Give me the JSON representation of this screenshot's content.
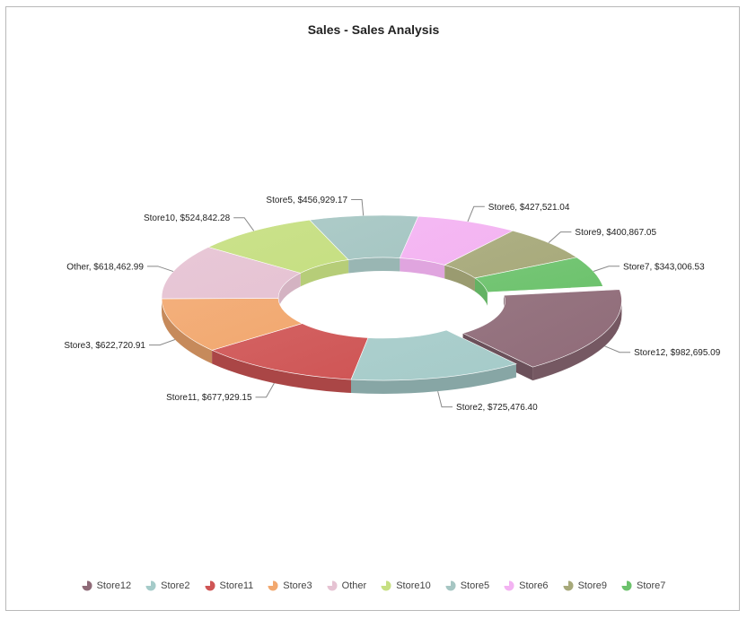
{
  "chart_data": {
    "type": "pie",
    "subtype": "3d-donut",
    "title": "Sales - Sales Analysis",
    "legend_position": "bottom",
    "exploded_slice": "Store12",
    "slices": [
      {
        "name": "Store12",
        "value": 982695.09,
        "label": "Store12, $982,695.09",
        "color": "#8f6b78"
      },
      {
        "name": "Store2",
        "value": 725476.4,
        "label": "Store2, $725,476.40",
        "color": "#a5cbc9"
      },
      {
        "name": "Store11",
        "value": 677929.15,
        "label": "Store11, $677,929.15",
        "color": "#cf5555"
      },
      {
        "name": "Store3",
        "value": 622720.91,
        "label": "Store3, $622,720.91",
        "color": "#f2a86f"
      },
      {
        "name": "Other",
        "value": 618462.99,
        "label": "Other, $618,462.99",
        "color": "#e6c3d3"
      },
      {
        "name": "Store10",
        "value": 524842.28,
        "label": "Store10, $524,842.28",
        "color": "#c6df82"
      },
      {
        "name": "Store5",
        "value": 456929.17,
        "label": "Store5, $456,929.17",
        "color": "#a6c6c3"
      },
      {
        "name": "Store6",
        "value": 427521.04,
        "label": "Store6, $427,521.04",
        "color": "#f3b3f2"
      },
      {
        "name": "Store9",
        "value": 400867.05,
        "label": "Store9, $400,867.05",
        "color": "#a7a97a"
      },
      {
        "name": "Store7",
        "value": 343006.53,
        "label": "Store7, $343,006.53",
        "color": "#6cc26c"
      }
    ]
  }
}
